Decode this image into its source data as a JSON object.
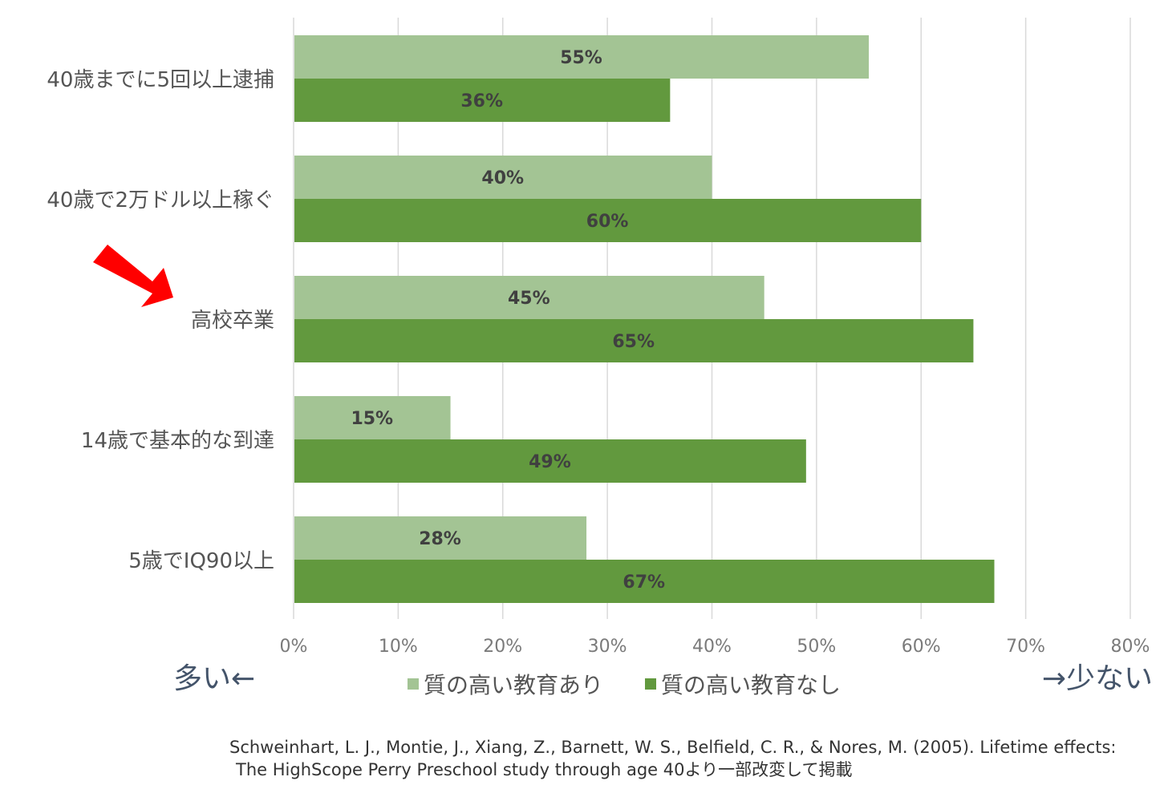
{
  "chart_data": {
    "type": "bar",
    "orientation": "horizontal",
    "categories": [
      "40歳までに5回以上逮捕",
      "40歳で2万ドル以上稼ぐ",
      "高校卒業",
      "14歳で基本的な到達",
      "5歳でIQ90以上"
    ],
    "series": [
      {
        "name": "質の高い教育あり",
        "color": "#a3c494",
        "values": [
          55,
          40,
          45,
          15,
          28
        ]
      },
      {
        "name": "質の高い教育なし",
        "color": "#62993e",
        "values": [
          36,
          60,
          65,
          49,
          67
        ]
      }
    ],
    "value_labels": [
      [
        "55%",
        "40%",
        "45%",
        "15%",
        "28%"
      ],
      [
        "36%",
        "60%",
        "65%",
        "49%",
        "67%"
      ]
    ],
    "xlim": [
      0,
      80
    ],
    "xticks": [
      0,
      10,
      20,
      30,
      40,
      50,
      60,
      70,
      80
    ],
    "xtick_labels": [
      "0%",
      "10%",
      "20%",
      "30%",
      "40%",
      "50%",
      "60%",
      "70%",
      "80%"
    ],
    "grid": "vertical",
    "legend_position": "bottom-center",
    "highlight_category": "高校卒業"
  },
  "annotations": {
    "left": "多い←",
    "right": "→少ない",
    "arrow_color": "#ff0000"
  },
  "citation": {
    "line1": "Schweinhart, L. J., Montie, J., Xiang, Z., Barnett, W. S., Belfield, C. R., & Nores, M. (2005). Lifetime effects:",
    "line2": "The HighScope Perry Preschool study through age 40より一部改変して掲載"
  }
}
